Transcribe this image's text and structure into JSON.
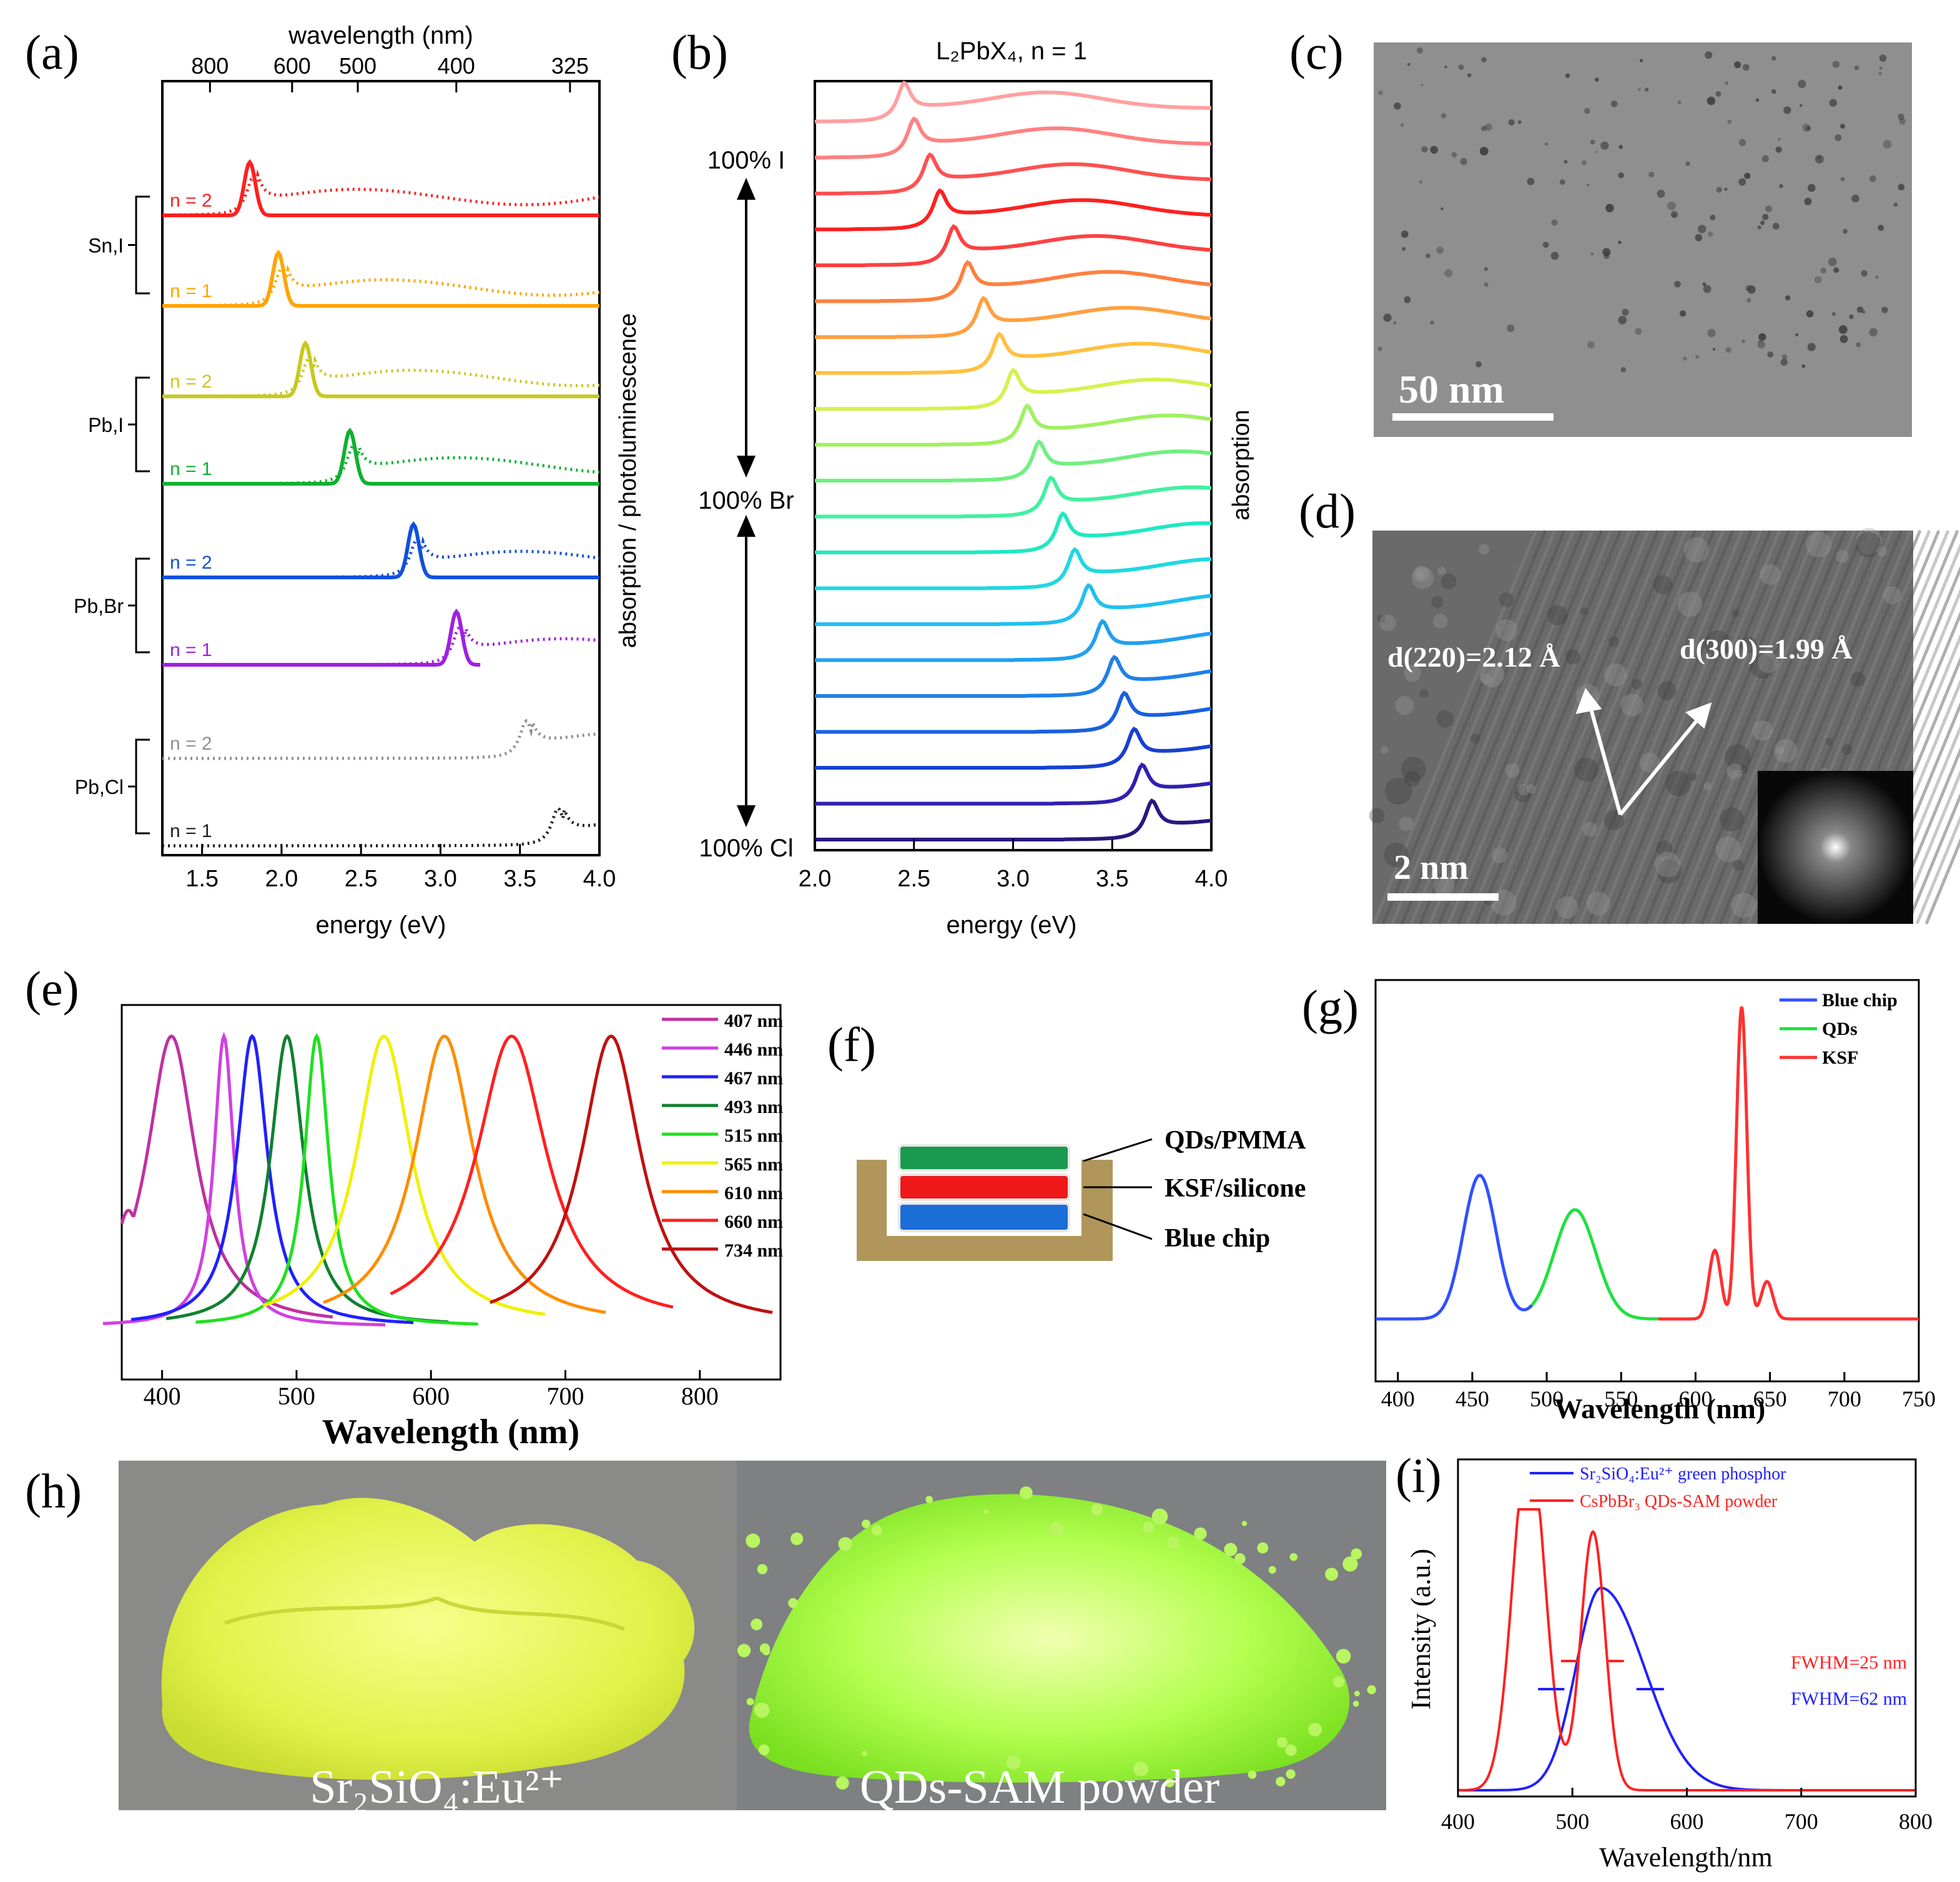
{
  "panels": [
    {
      "key": "a",
      "label": "(a)"
    },
    {
      "key": "b",
      "label": "(b)"
    },
    {
      "key": "c",
      "label": "(c)"
    },
    {
      "key": "d",
      "label": "(d)"
    },
    {
      "key": "e",
      "label": "(e)"
    },
    {
      "key": "f",
      "label": "(f)"
    },
    {
      "key": "g",
      "label": "(g)"
    },
    {
      "key": "h",
      "label": "(h)"
    },
    {
      "key": "i",
      "label": "(i)"
    }
  ],
  "chart_data": [
    {
      "panel": "a",
      "type": "line",
      "xlabel": "energy (eV)",
      "x2label": "wavelength (nm)",
      "ylabel": "absorption / photoluminescence",
      "xlim": [
        1.25,
        4.0
      ],
      "xticks": [
        "1.5",
        "2.0",
        "2.5",
        "3.0",
        "3.5",
        "4.0"
      ],
      "x2ticks": [
        "800",
        "600",
        "500",
        "400",
        "325"
      ],
      "groups": [
        "Sn,I",
        "Pb,I",
        "Pb,Br",
        "Pb,Cl"
      ],
      "series": [
        {
          "name": "n = 2",
          "group": "Sn,I",
          "color": "#ff2020",
          "peak_eV": 1.8
        },
        {
          "name": "n = 1",
          "group": "Sn,I",
          "color": "#ffa500",
          "peak_eV": 1.98
        },
        {
          "name": "n = 2",
          "group": "Pb,I",
          "color": "#c8c820",
          "peak_eV": 2.15
        },
        {
          "name": "n = 1",
          "group": "Pb,I",
          "color": "#10b030",
          "peak_eV": 2.43
        },
        {
          "name": "n = 2",
          "group": "Pb,Br",
          "color": "#1050e0",
          "peak_eV": 2.83
        },
        {
          "name": "n = 1",
          "group": "Pb,Br",
          "color": "#a020e0",
          "peak_eV": 3.1
        },
        {
          "name": "n = 2",
          "group": "Pb,Cl",
          "color": "#909090",
          "peak_eV": 3.52
        },
        {
          "name": "n = 1",
          "group": "Pb,Cl",
          "color": "#202020",
          "peak_eV": 3.72
        }
      ]
    },
    {
      "panel": "b",
      "type": "line",
      "title": "L₂PbX₄, n = 1",
      "xlabel": "energy (eV)",
      "ylabel": "absorption",
      "xlim": [
        2.0,
        4.0
      ],
      "xticks": [
        "2.0",
        "2.5",
        "3.0",
        "3.5",
        "4.0"
      ],
      "composition_labels": [
        "100% I",
        "100% Br",
        "100% Cl"
      ],
      "peaks_eV": [
        2.45,
        2.5,
        2.58,
        2.63,
        2.7,
        2.77,
        2.85,
        2.93,
        3.0,
        3.07,
        3.13,
        3.19,
        3.25,
        3.31,
        3.38,
        3.45,
        3.51,
        3.56,
        3.61,
        3.65,
        3.7
      ]
    },
    {
      "panel": "c",
      "type": "image",
      "scale_bar": "50 nm"
    },
    {
      "panel": "d",
      "type": "image",
      "scale_bar": "2 nm",
      "annotations": [
        "d(220)=2.12 Å",
        "d(300)=1.99 Å"
      ]
    },
    {
      "panel": "e",
      "type": "line",
      "xlabel": "Wavelength (nm)",
      "xlim": [
        370,
        860
      ],
      "xticks": [
        400,
        500,
        600,
        700,
        800
      ],
      "series": [
        {
          "name": "407 nm",
          "peak": 407,
          "color": "#c030a0"
        },
        {
          "name": "446 nm",
          "peak": 446,
          "color": "#d040e0"
        },
        {
          "name": "467 nm",
          "peak": 467,
          "color": "#2020ff"
        },
        {
          "name": "493 nm",
          "peak": 493,
          "color": "#108030"
        },
        {
          "name": "515 nm",
          "peak": 515,
          "color": "#20e020"
        },
        {
          "name": "565 nm",
          "peak": 565,
          "color": "#f0f000"
        },
        {
          "name": "610 nm",
          "peak": 610,
          "color": "#ff8c00"
        },
        {
          "name": "660 nm",
          "peak": 660,
          "color": "#ff2020"
        },
        {
          "name": "734 nm",
          "peak": 734,
          "color": "#c01010"
        }
      ]
    },
    {
      "panel": "f",
      "type": "diagram",
      "layers": [
        "QDs/PMMA",
        "KSF/silicone",
        "Blue chip"
      ]
    },
    {
      "panel": "g",
      "type": "line",
      "xlabel": "Wavelength (nm)",
      "xlim": [
        385,
        750
      ],
      "xticks": [
        400,
        450,
        500,
        550,
        600,
        650,
        700,
        750
      ],
      "series": [
        {
          "name": "Blue chip",
          "color": "#3050ff",
          "peaks": [
            455
          ]
        },
        {
          "name": "QDs",
          "color": "#20e040",
          "peaks": [
            519
          ]
        },
        {
          "name": "KSF",
          "color": "#ff3030",
          "peaks": [
            613,
            631,
            648
          ]
        }
      ]
    },
    {
      "panel": "h",
      "type": "photo",
      "captions": [
        "Sr₂SiO₄:Eu²⁺",
        "QDs-SAM powder"
      ]
    },
    {
      "panel": "i",
      "type": "line",
      "xlabel": "Wavelength/nm",
      "ylabel": "Intensity (a.u.)",
      "xlim": [
        400,
        800
      ],
      "xticks": [
        400,
        500,
        600,
        700,
        800
      ],
      "series": [
        {
          "name": "Sr₂SiO₄:Eu²⁺ green phosphor",
          "color": "#2020ff",
          "peak": 525,
          "fwhm": "FWHM=62 nm"
        },
        {
          "name": "CsPbBr₃ QDs-SAM powder",
          "color": "#ff2020",
          "peak": 518,
          "fwhm": "FWHM=25 nm"
        }
      ]
    }
  ]
}
